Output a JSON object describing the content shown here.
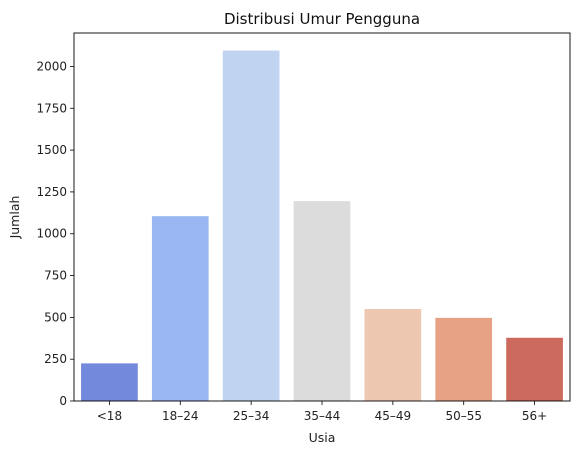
{
  "chart_data": {
    "type": "bar",
    "title": "Distribusi Umur Pengguna",
    "xlabel": "Usia",
    "ylabel": "Jumlah",
    "categories": [
      "<18",
      "18–24",
      "25–34",
      "35–44",
      "45–49",
      "50–55",
      "56+"
    ],
    "values": [
      225,
      1105,
      2095,
      1195,
      550,
      497,
      378
    ],
    "colors": [
      "#7389dc",
      "#9bb7f3",
      "#c0d3f1",
      "#dcdcdc",
      "#eec7b1",
      "#e7a286",
      "#cc6a5d"
    ],
    "yticks": [
      0,
      250,
      500,
      750,
      1000,
      1250,
      1500,
      1750,
      2000
    ],
    "ylim": [
      0,
      2200
    ],
    "grid": false,
    "legend": "none"
  }
}
